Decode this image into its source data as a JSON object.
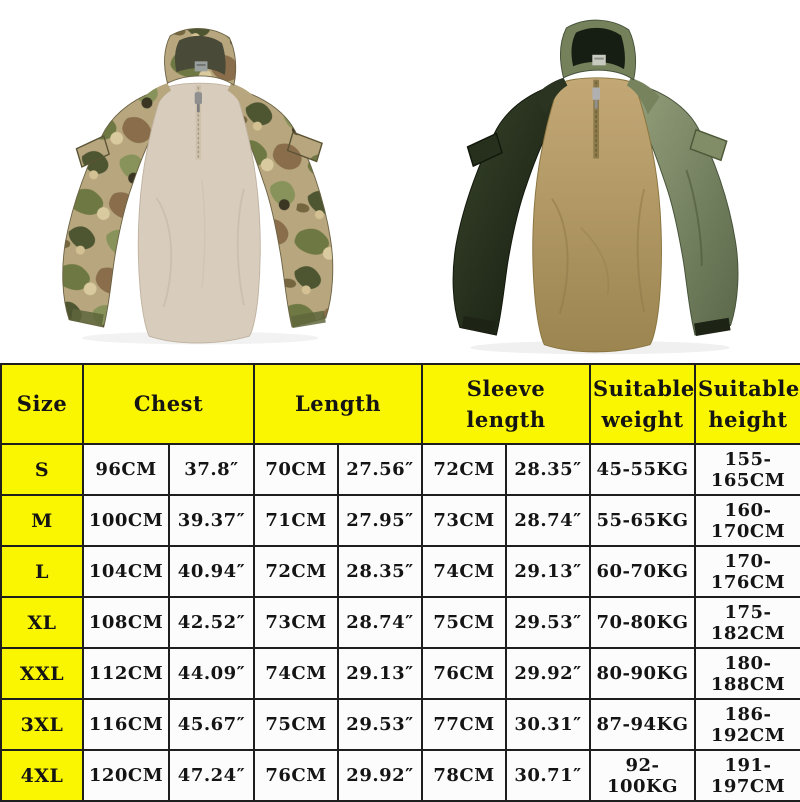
{
  "page": {
    "background_color": "#ffffff"
  },
  "products": [
    {
      "id": "multicam-combat-shirt",
      "label": "camouflage quarter-zip combat shirt with khaki torso and multicam sleeves",
      "colors": {
        "body": "#d8ccbd",
        "camo_base": "#b7a67e",
        "camo_green": "#6e7842",
        "camo_brown": "#8a6e4c",
        "camo_dark_olive": "#4d5531",
        "camo_dark": "#3b3624",
        "camo_light": "#d9cb9f"
      }
    },
    {
      "id": "khaki-olive-combat-shirt",
      "label": "khaki quarter-zip combat shirt with olive green sleeves and collar",
      "colors": {
        "body": "#b79d66",
        "sleeve_dark": "#2a3322",
        "sleeve_sage": "#77855e",
        "collar_outer": "#74815b",
        "collar_inner": "#161d12"
      }
    }
  ],
  "size_chart": {
    "styles": {
      "header_bg": "#faf501",
      "cell_bg": "#fcfcfc",
      "border": "#1e1e1e"
    },
    "columns": [
      "Size",
      "Chest",
      "Length",
      "Sleeve length",
      "Suitable weight",
      "Suitable height"
    ],
    "rows": [
      [
        "S",
        "96CM",
        "37.8″",
        "70CM",
        "27.56″",
        "72CM",
        "28.35″",
        "45-55KG",
        "155-165CM"
      ],
      [
        "M",
        "100CM",
        "39.37″",
        "71CM",
        "27.95″",
        "73CM",
        "28.74″",
        "55-65KG",
        "160-170CM"
      ],
      [
        "L",
        "104CM",
        "40.94″",
        "72CM",
        "28.35″",
        "74CM",
        "29.13″",
        "60-70KG",
        "170-176CM"
      ],
      [
        "XL",
        "108CM",
        "42.52″",
        "73CM",
        "28.74″",
        "75CM",
        "29.53″",
        "70-80KG",
        "175-182CM"
      ],
      [
        "XXL",
        "112CM",
        "44.09″",
        "74CM",
        "29.13″",
        "76CM",
        "29.92″",
        "80-90KG",
        "180-188CM"
      ],
      [
        "3XL",
        "116CM",
        "45.67″",
        "75CM",
        "29.53″",
        "77CM",
        "30.31″",
        "87-94KG",
        "186-192CM"
      ],
      [
        "4XL",
        "120CM",
        "47.24″",
        "76CM",
        "29.92″",
        "78CM",
        "30.71″",
        "92-100KG",
        "191-197CM"
      ]
    ]
  }
}
